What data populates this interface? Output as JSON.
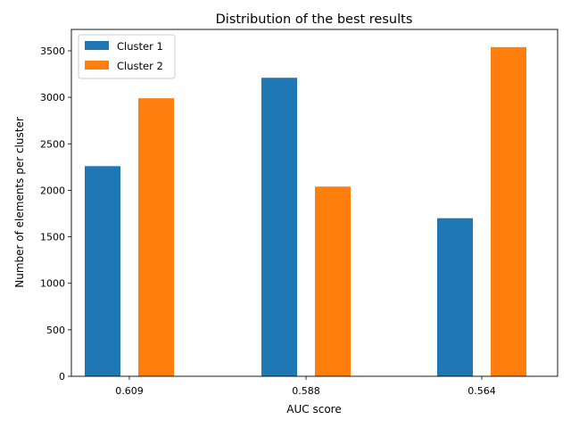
{
  "chart_data": {
    "type": "bar",
    "title": "Distribution of the best results",
    "xlabel": "AUC score",
    "ylabel": "Number of elements per cluster",
    "categories": [
      "0.609",
      "0.588",
      "0.564"
    ],
    "series": [
      {
        "name": "Cluster 1",
        "values": [
          2260,
          3210,
          1700
        ],
        "color": "#1f77b4"
      },
      {
        "name": "Cluster 2",
        "values": [
          2990,
          2040,
          3540
        ],
        "color": "#ff7f0e"
      }
    ],
    "ylim": [
      0,
      3730
    ],
    "yticks": [
      0,
      500,
      1000,
      1500,
      2000,
      2500,
      3000,
      3500
    ],
    "grid": false,
    "legend": "top-left"
  }
}
